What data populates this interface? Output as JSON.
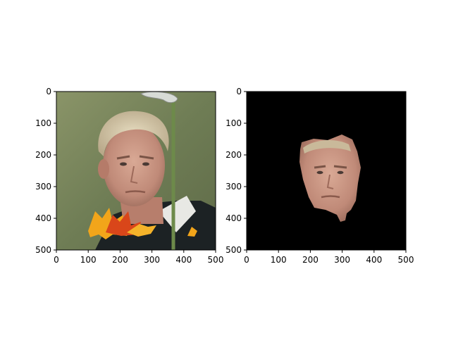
{
  "panels": [
    {
      "id": "left",
      "description_kind": "photo",
      "x_ticks": [
        "0",
        "100",
        "200",
        "300",
        "400",
        "500"
      ],
      "y_ticks": [
        "0",
        "100",
        "200",
        "300",
        "400",
        "500"
      ],
      "xlim": [
        0,
        500
      ],
      "ylim": [
        0,
        500
      ]
    },
    {
      "id": "right",
      "description_kind": "masked-face",
      "x_ticks": [
        "0",
        "100",
        "200",
        "300",
        "400",
        "500"
      ],
      "y_ticks": [
        "0",
        "100",
        "200",
        "300",
        "400",
        "500"
      ],
      "xlim": [
        0,
        500
      ],
      "ylim": [
        0,
        500
      ]
    }
  ],
  "colors": {
    "mask_background": "#000000",
    "photo_background": "#7d8a5e",
    "leaf_orange": "#f2a51a",
    "leaf_red": "#d9461a"
  }
}
